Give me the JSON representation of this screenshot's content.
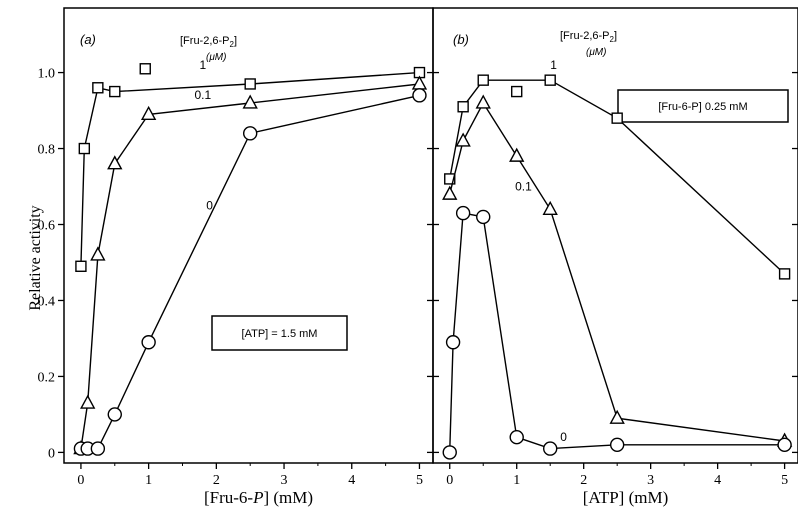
{
  "y_axis_label": "Relative activity",
  "chart_data": [
    {
      "type": "line",
      "panel_label": "(a)",
      "legend_title": "[Fru-2,6-P",
      "legend_title_sub": "2",
      "legend_title_end": "]",
      "legend_units": "(μM)",
      "xlabel_pre": "[Fru-6-",
      "xlabel_ital": "P",
      "xlabel_post": "] (mM)",
      "xlim": [
        -0.25,
        5.2
      ],
      "ylim": [
        -0.02,
        1.17
      ],
      "x_ticks": [
        0,
        1,
        2,
        3,
        4,
        5
      ],
      "y_ticks": [
        0,
        0.2,
        0.4,
        0.6,
        0.8,
        1.0
      ],
      "y_tick_labels": [
        "0",
        "0.2",
        "0.4",
        "0.6",
        "0.8",
        "1.0"
      ],
      "annotation": "[ATP] = 1.5 mM",
      "series": [
        {
          "name": "1",
          "marker": "square",
          "label_pos": [
            1.8,
            1.01
          ],
          "points": [
            [
              0,
              0.49
            ],
            [
              0.05,
              0.8
            ],
            [
              0.25,
              0.96
            ],
            [
              0.5,
              0.95
            ],
            [
              2.5,
              0.97
            ],
            [
              5,
              1.0
            ]
          ],
          "extra_points": [
            [
              0.95,
              1.01
            ]
          ]
        },
        {
          "name": "0.1",
          "marker": "triangle",
          "label_pos": [
            1.8,
            0.93
          ],
          "points": [
            [
              0,
              0.01
            ],
            [
              0.1,
              0.13
            ],
            [
              0.25,
              0.52
            ],
            [
              0.5,
              0.76
            ],
            [
              1,
              0.89
            ],
            [
              2.5,
              0.92
            ],
            [
              5,
              0.97
            ]
          ],
          "extra_points": []
        },
        {
          "name": "0",
          "marker": "circle",
          "label_pos": [
            1.9,
            0.64
          ],
          "points": [
            [
              0,
              0.01
            ],
            [
              0.1,
              0.01
            ],
            [
              0.25,
              0.01
            ],
            [
              0.5,
              0.1
            ],
            [
              1,
              0.29
            ],
            [
              2.5,
              0.84
            ],
            [
              5,
              0.94
            ]
          ],
          "extra_points": []
        }
      ]
    },
    {
      "type": "line",
      "panel_label": "(b)",
      "legend_title": "[Fru-2,6-P",
      "legend_title_sub": "2",
      "legend_title_end": "]",
      "legend_units": "(μM)",
      "xlabel_pre": "[ATP] (mM)",
      "xlabel_ital": "",
      "xlabel_post": "",
      "xlim": [
        -0.25,
        5.2
      ],
      "ylim": [
        -0.02,
        1.17
      ],
      "x_ticks": [
        0,
        1,
        2,
        3,
        4,
        5
      ],
      "y_ticks": [
        0,
        0.2,
        0.4,
        0.6,
        0.8,
        1.0
      ],
      "y_tick_labels": [
        "",
        "",
        "",
        "",
        "",
        ""
      ],
      "annotation": "[Fru-6-P]  0.25 mM",
      "series": [
        {
          "name": "1",
          "marker": "square",
          "label_pos": [
            1.55,
            1.01
          ],
          "points": [
            [
              0,
              0.72
            ],
            [
              0.2,
              0.91
            ],
            [
              0.5,
              0.98
            ],
            [
              1.5,
              0.98
            ],
            [
              2.5,
              0.88
            ],
            [
              5,
              0.47
            ]
          ],
          "extra_points": [
            [
              1.0,
              0.95
            ]
          ]
        },
        {
          "name": "0.1",
          "marker": "triangle",
          "label_pos": [
            1.1,
            0.69
          ],
          "points": [
            [
              0,
              0.68
            ],
            [
              0.2,
              0.82
            ],
            [
              0.5,
              0.92
            ],
            [
              1,
              0.78
            ],
            [
              1.5,
              0.64
            ],
            [
              2.5,
              0.09
            ],
            [
              5,
              0.03
            ]
          ],
          "extra_points": []
        },
        {
          "name": "0",
          "marker": "circle",
          "label_pos": [
            1.7,
            0.03
          ],
          "points": [
            [
              0,
              0
            ],
            [
              0.05,
              0.29
            ],
            [
              0.2,
              0.63
            ],
            [
              0.5,
              0.62
            ],
            [
              1,
              0.04
            ],
            [
              1.5,
              0.01
            ],
            [
              2.5,
              0.02
            ],
            [
              5,
              0.02
            ]
          ],
          "extra_points": []
        }
      ]
    }
  ]
}
